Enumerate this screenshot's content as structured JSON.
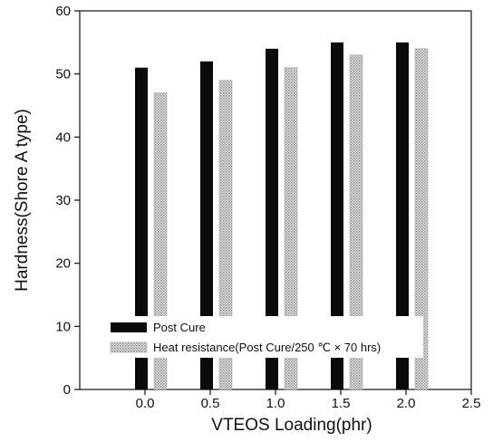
{
  "chart_data": {
    "type": "bar",
    "title": "",
    "xlabel": "VTEOS Loading(phr)",
    "ylabel": "Hardness(Shore A type)",
    "xlim": [
      -0.5,
      2.5
    ],
    "ylim": [
      0,
      60
    ],
    "x_ticks": [
      "0.0",
      "0.5",
      "1.0",
      "1.5",
      "2.0",
      "2.5"
    ],
    "y_ticks": [
      "0",
      "10",
      "20",
      "30",
      "40",
      "50",
      "60"
    ],
    "categories": [
      0.0,
      0.5,
      1.0,
      1.5,
      2.0
    ],
    "series": [
      {
        "name": "Post Cure",
        "values": [
          51,
          52,
          54,
          55,
          55
        ],
        "color": "#0a0a0a"
      },
      {
        "name": "Heat resistance(Post Cure/250  ℃ × 70 hrs)",
        "values": [
          47,
          49,
          51,
          53,
          54
        ],
        "color": "#bdbdbd"
      }
    ],
    "legend_position": "lower-left",
    "grid": false
  }
}
